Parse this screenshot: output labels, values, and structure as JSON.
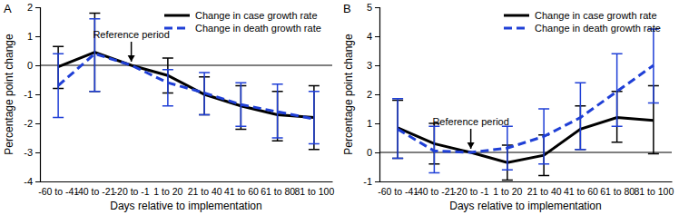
{
  "chart_data": [
    {
      "type": "line",
      "title": "A",
      "x_label": "Days relative to implementation",
      "y_label": "Percentage point change",
      "categories": [
        "-60 to -41",
        "-40 to -21",
        "-20 to -1",
        "1 to 20",
        "21 to 40",
        "41 to 60",
        "61 to 80",
        "81 to 100"
      ],
      "series": [
        {
          "name": "Change in case growth rate",
          "color": "#000000",
          "line_style": "solid",
          "values": [
            -0.05,
            0.45,
            0,
            -0.35,
            -1.0,
            -1.4,
            -1.7,
            -1.8
          ],
          "ci_lower": [
            -0.8,
            -0.9,
            null,
            -0.95,
            -1.7,
            -2.2,
            -2.6,
            -2.9
          ],
          "ci_upper": [
            0.65,
            1.8,
            null,
            0.25,
            -0.4,
            -0.7,
            -0.9,
            -0.7
          ]
        },
        {
          "name": "Change in death growth rate",
          "color": "#1f3fd6",
          "line_style": "dashed",
          "values": [
            -0.7,
            0.4,
            0,
            -0.6,
            -0.95,
            -1.35,
            -1.6,
            -1.85
          ],
          "ci_lower": [
            -1.8,
            -0.9,
            null,
            -1.4,
            -1.7,
            -2.1,
            -2.5,
            -2.7
          ],
          "ci_upper": [
            0.4,
            1.6,
            null,
            -0.15,
            -0.25,
            -0.6,
            -0.65,
            -0.9
          ]
        }
      ],
      "ylim": [
        -4,
        2
      ],
      "yticks": [
        -4,
        -3,
        -2,
        -1,
        0,
        1,
        2
      ],
      "hline": 0,
      "annotations": [
        {
          "text": "Reference period",
          "x": "-20 to -1"
        }
      ],
      "legend": "top-right",
      "grid": false
    },
    {
      "type": "line",
      "title": "B",
      "x_label": "Days relative to implementation",
      "y_label": "Percentage point change",
      "categories": [
        "-60 to -41",
        "-40 to -21",
        "-20 to -1",
        "1 to 20",
        "21 to 40",
        "41 to 60",
        "61 to 80",
        "81 to 100"
      ],
      "series": [
        {
          "name": "Change in case growth rate",
          "color": "#000000",
          "line_style": "solid",
          "values": [
            0.85,
            0.3,
            0,
            -0.35,
            -0.1,
            0.8,
            1.2,
            1.1
          ],
          "ci_lower": [
            -0.2,
            -0.4,
            null,
            -0.95,
            -0.8,
            0.1,
            0.35,
            -0.05
          ],
          "ci_upper": [
            1.8,
            1.0,
            null,
            0.25,
            0.6,
            1.6,
            2.1,
            2.3
          ]
        },
        {
          "name": "Change in death growth rate",
          "color": "#1f3fd6",
          "line_style": "dashed",
          "values": [
            0.8,
            0.05,
            0,
            0.15,
            0.55,
            1.2,
            2.1,
            3.0
          ],
          "ci_lower": [
            -0.2,
            -0.7,
            null,
            -0.6,
            -0.4,
            0.1,
            0.9,
            1.7
          ],
          "ci_upper": [
            1.85,
            0.9,
            null,
            0.9,
            1.5,
            2.4,
            3.4,
            4.25
          ]
        }
      ],
      "ylim": [
        -1,
        5
      ],
      "yticks": [
        -1,
        0,
        1,
        2,
        3,
        4,
        5
      ],
      "hline": 0,
      "annotations": [
        {
          "text": "Reference period",
          "x": "-20 to -1"
        }
      ],
      "legend": "top-right",
      "grid": false
    }
  ]
}
